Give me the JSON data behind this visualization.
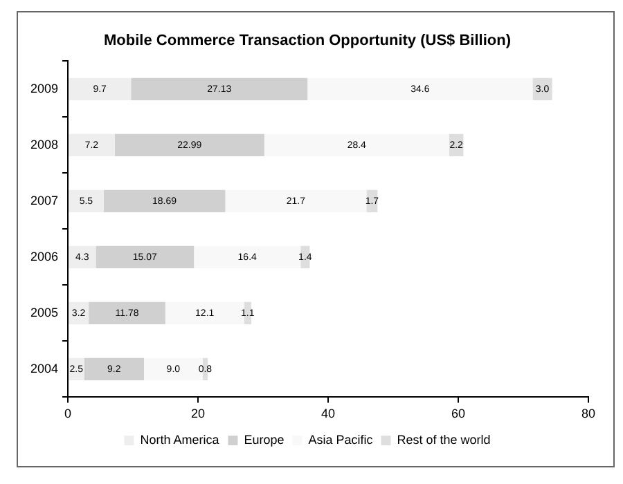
{
  "chart_data": {
    "type": "bar",
    "orientation": "horizontal",
    "stacked": true,
    "title": "Mobile Commerce Transaction Opportunity (US$ Billion)",
    "categories": [
      "2009",
      "2008",
      "2007",
      "2006",
      "2005",
      "2004"
    ],
    "series": [
      {
        "name": "North America",
        "color": "#eeeeee",
        "values": [
          9.7,
          7.2,
          5.5,
          4.3,
          3.2,
          2.5
        ],
        "value_labels": [
          "9.7",
          "7.2",
          "5.5",
          "4.3",
          "3.2",
          "2.5"
        ]
      },
      {
        "name": "Europe",
        "color": "#d0d0d0",
        "values": [
          27.13,
          22.99,
          18.69,
          15.07,
          11.78,
          9.2
        ],
        "value_labels": [
          "27.13",
          "22.99",
          "18.69",
          "15.07",
          "11.78",
          "9.2"
        ]
      },
      {
        "name": "Asia Pacific",
        "color": "#f8f8f8",
        "values": [
          34.6,
          28.4,
          21.7,
          16.4,
          12.1,
          9.0
        ],
        "value_labels": [
          "34.6",
          "28.4",
          "21.7",
          "16.4",
          "12.1",
          "9.0"
        ]
      },
      {
        "name": "Rest of the world",
        "color": "#dedede",
        "values": [
          3.0,
          2.2,
          1.7,
          1.4,
          1.1,
          0.8
        ],
        "value_labels": [
          "3.0",
          "2.2",
          "1.7",
          "1.4",
          "1.1",
          "0.8"
        ]
      }
    ],
    "xlim": [
      0,
      80
    ],
    "xticks": [
      0,
      20,
      40,
      60,
      80
    ],
    "grid": false,
    "legend": "bottom"
  }
}
